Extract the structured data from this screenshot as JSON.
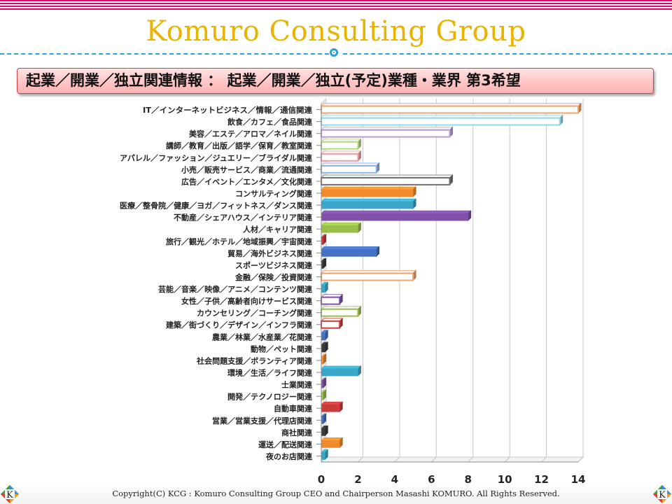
{
  "header": {
    "title": "Komuro Consulting Group",
    "subtitle": "起業／開業／独立関連情報 ： 起業／開業／独立(予定)業種・業界 第3希望"
  },
  "footer": {
    "copyright": "Copyright(C) KCG : Komuro Consulting Group CEO and Chairperson Masashi KOMURO. All Rights Reserved.",
    "logo_left": "K",
    "logo_right": "K"
  },
  "chart_data": {
    "type": "bar",
    "orientation": "horizontal",
    "categories": [
      "IT／インターネットビジネス／情報／通信関連",
      "飲食／カフェ／食品関連",
      "美容／エステ／アロマ／ネイル関連",
      "講師／教育／出版／語学／保育／教室関連",
      "アパレル／ファッション／ジュエリー／ブライダル関連",
      "小売／販売サービス／商業／流通関連",
      "広告／イベント／エンタメ／文化関連",
      "コンサルティング関連",
      "医療／整骨院／健康／ヨガ／フィットネス／ダンス関連",
      "不動産／シェアハウス／インテリア関連",
      "人材／キャリア関連",
      "旅行／観光／ホテル／地域振興／宇宙関連",
      "貿易／海外ビジネス関連",
      "スポーツビジネス関連",
      "金融／保険／投資関連",
      "芸能／音楽／映像／アニメ／コンテンツ関連",
      "女性／子供／高齢者向けサービス関連",
      "カウンセリング／コーチング関連",
      "建築／街づくり／デザイン／インフラ関連",
      "農業／林業／水産業／花関連",
      "動物／ペット関連",
      "社会問題支援／ボランティア関連",
      "環境／生活／ライフ関連",
      "士業関連",
      "開発／テクノロジー関連",
      "自動車関連",
      "営業／営業支援／代理店関連",
      "商社関連",
      "運送／配送関連",
      "夜のお店関連"
    ],
    "values": [
      14,
      13,
      7,
      2,
      2,
      3,
      7,
      5,
      5,
      8,
      2,
      0.1,
      3,
      0.1,
      5,
      0.2,
      1,
      2,
      1,
      0.2,
      0.2,
      0.1,
      2,
      0.1,
      0.1,
      1,
      0.1,
      0.2,
      1,
      0.2
    ],
    "colors": [
      "#f5a36a",
      "#8fd9ea",
      "#b99ad6",
      "#b4d77c",
      "#f29a9a",
      "#8eb4e3",
      "#707070",
      "#f08a2c",
      "#3aa7c8",
      "#7f52a8",
      "#99bf4a",
      "#c83c3c",
      "#4472c4",
      "#3a3a3a",
      "#f5a36a",
      "#3aa7c8",
      "#7f52a8",
      "#99bf4a",
      "#c83c3c",
      "#4472c4",
      "#3a3a3a",
      "#f08a2c",
      "#3aa7c8",
      "#7f52a8",
      "#99bf4a",
      "#c83c3c",
      "#4472c4",
      "#3a3a3a",
      "#f08a2c",
      "#3aa7c8"
    ],
    "hollow": [
      true,
      true,
      true,
      true,
      true,
      true,
      true,
      false,
      false,
      false,
      false,
      false,
      false,
      false,
      true,
      false,
      true,
      true,
      true,
      false,
      false,
      false,
      false,
      false,
      false,
      false,
      false,
      false,
      false,
      false
    ],
    "xlim": [
      0,
      14
    ],
    "xticks": [
      0,
      2,
      4,
      6,
      8,
      10,
      12,
      14
    ],
    "grid": true,
    "style": "3d"
  }
}
